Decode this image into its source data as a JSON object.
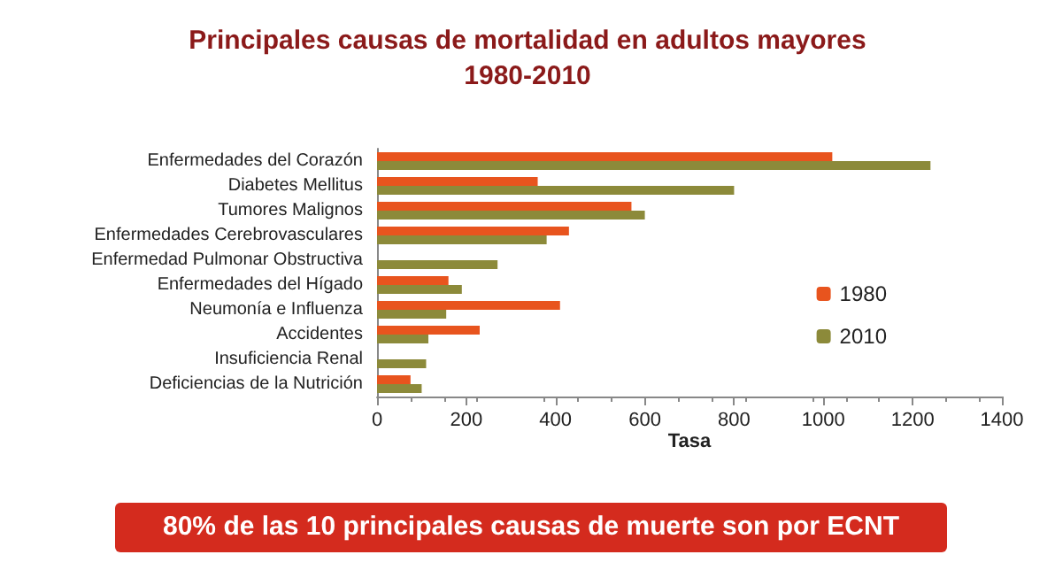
{
  "chart_data": {
    "type": "bar",
    "orientation": "horizontal",
    "title": "Principales causas de mortalidad en adultos mayores\n1980-2010",
    "xlabel": "Tasa",
    "categories": [
      "Enfermedades del Corazón",
      "Diabetes Mellitus",
      "Tumores Malignos",
      "Enfermedades Cerebrovasculares",
      "Enfermedad Pulmonar Obstructiva",
      "Enfermedades del Hígado",
      "Neumonía e Influenza",
      "Accidentes",
      "Insuficiencia Renal",
      "Deficiencias de la Nutrición"
    ],
    "series": [
      {
        "name": "1980",
        "color": "#e8541e",
        "values": [
          1020,
          360,
          570,
          430,
          null,
          160,
          410,
          230,
          null,
          75
        ]
      },
      {
        "name": "2010",
        "color": "#8c8a3a",
        "values": [
          1240,
          800,
          600,
          380,
          270,
          190,
          155,
          115,
          110,
          100
        ]
      }
    ],
    "xlim": [
      0,
      1400
    ],
    "xticks": [
      0,
      200,
      400,
      600,
      800,
      1000,
      1200,
      1400
    ],
    "grid": false,
    "legend": "right",
    "annotations": [
      "80% de las 10 principales causas de muerte son por ECNT"
    ]
  }
}
